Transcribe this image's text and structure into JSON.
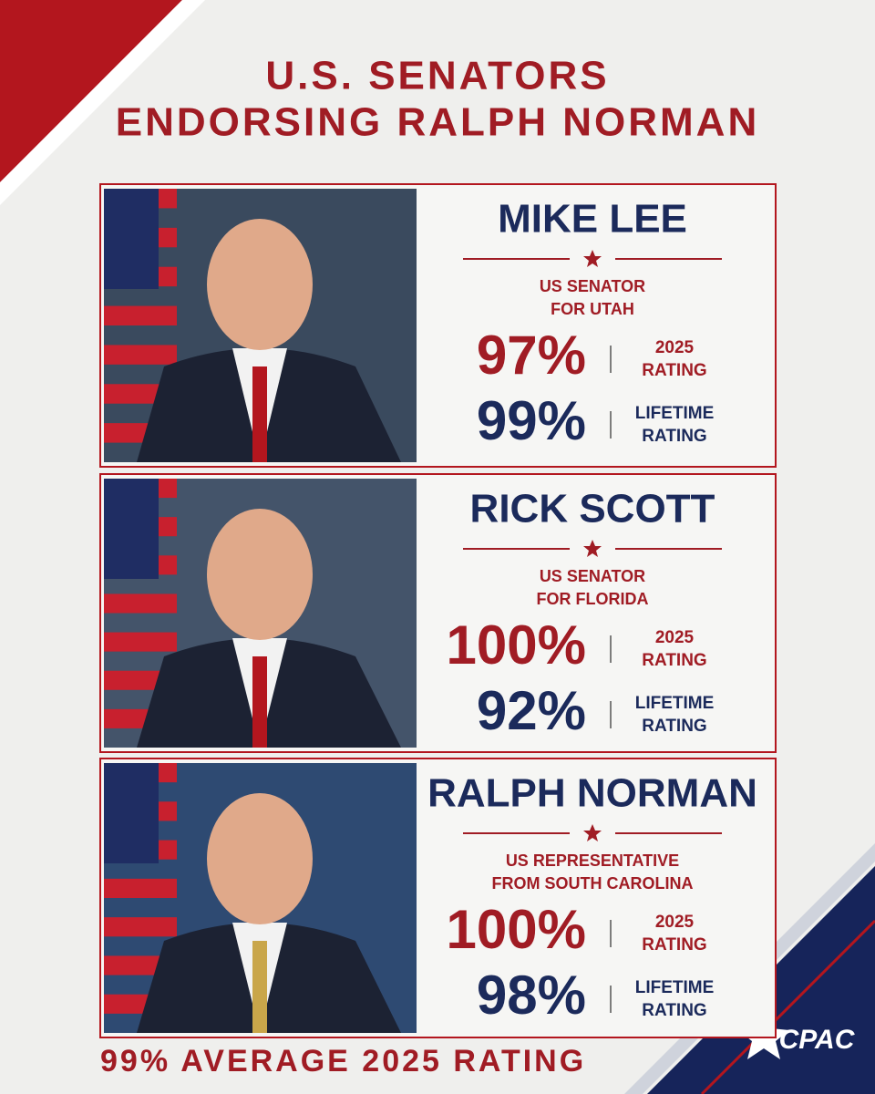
{
  "header": {
    "title": [
      "U.S. SENATORS",
      "ENDORSING RALPH NORMAN"
    ]
  },
  "cards": [
    {
      "name": "MIKE LEE",
      "role": [
        "US SENATOR",
        "FOR UTAH"
      ],
      "ratings": [
        {
          "value": "97%",
          "label": [
            "2025",
            "RATING"
          ]
        },
        {
          "value": "99%",
          "label": [
            "LIFETIME",
            "RATING"
          ]
        }
      ]
    },
    {
      "name": "RICK SCOTT",
      "role": [
        "US SENATOR",
        "FOR FLORIDA"
      ],
      "ratings": [
        {
          "value": "100%",
          "label": [
            "2025",
            "RATING"
          ]
        },
        {
          "value": "92%",
          "label": [
            "LIFETIME",
            "RATING"
          ]
        }
      ]
    },
    {
      "name": "RALPH NORMAN",
      "role": [
        "US REPRESENTATIVE",
        "FROM SOUTH CAROLINA"
      ],
      "ratings": [
        {
          "value": "100%",
          "label": [
            "2025",
            "RATING"
          ]
        },
        {
          "value": "98%",
          "label": [
            "LIFETIME",
            "RATING"
          ]
        }
      ]
    }
  ],
  "footer": "99% AVERAGE 2025 RATING",
  "logo": "CPAC"
}
